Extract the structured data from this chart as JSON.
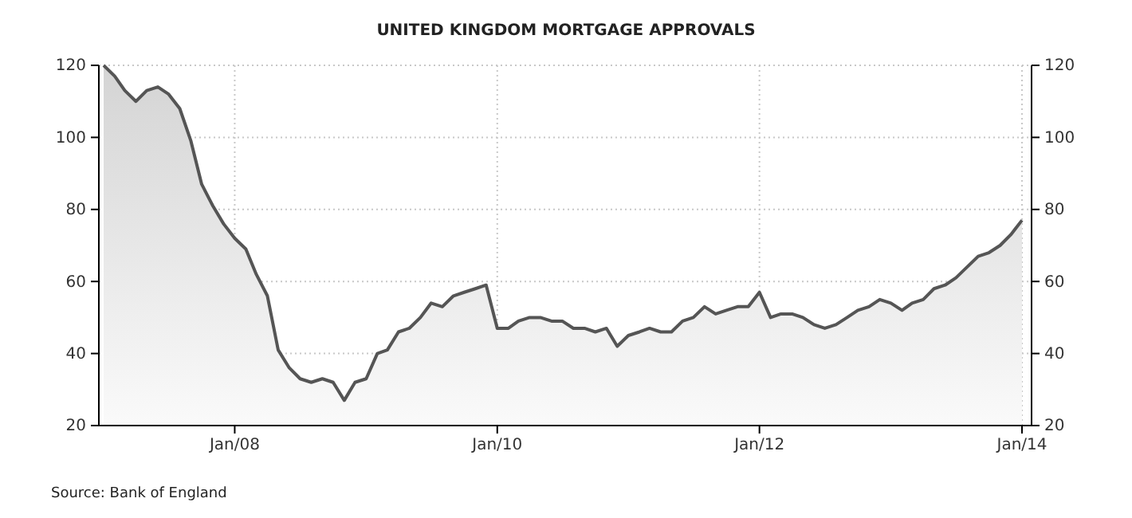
{
  "chart_data": {
    "type": "area",
    "title": "UNITED KINGDOM MORTGAGE APPROVALS",
    "x": [
      "2007-01",
      "2007-02",
      "2007-03",
      "2007-04",
      "2007-05",
      "2007-06",
      "2007-07",
      "2007-08",
      "2007-09",
      "2007-10",
      "2007-11",
      "2007-12",
      "2008-01",
      "2008-02",
      "2008-03",
      "2008-04",
      "2008-05",
      "2008-06",
      "2008-07",
      "2008-08",
      "2008-09",
      "2008-10",
      "2008-11",
      "2008-12",
      "2009-01",
      "2009-02",
      "2009-03",
      "2009-04",
      "2009-05",
      "2009-06",
      "2009-07",
      "2009-08",
      "2009-09",
      "2009-10",
      "2009-11",
      "2009-12",
      "2010-01",
      "2010-02",
      "2010-03",
      "2010-04",
      "2010-05",
      "2010-06",
      "2010-07",
      "2010-08",
      "2010-09",
      "2010-10",
      "2010-11",
      "2010-12",
      "2011-01",
      "2011-02",
      "2011-03",
      "2011-04",
      "2011-05",
      "2011-06",
      "2011-07",
      "2011-08",
      "2011-09",
      "2011-10",
      "2011-11",
      "2011-12",
      "2012-01",
      "2012-02",
      "2012-03",
      "2012-04",
      "2012-05",
      "2012-06",
      "2012-07",
      "2012-08",
      "2012-09",
      "2012-10",
      "2012-11",
      "2012-12",
      "2013-01",
      "2013-02",
      "2013-03",
      "2013-04",
      "2013-05",
      "2013-06",
      "2013-07",
      "2013-08",
      "2013-09",
      "2013-10",
      "2013-11",
      "2013-12",
      "2014-01"
    ],
    "series": [
      {
        "color": "#555555",
        "values": [
          120,
          117,
          113,
          110,
          113,
          114,
          112,
          108,
          99,
          87,
          81,
          76,
          72,
          69,
          62,
          56,
          41,
          36,
          33,
          32,
          33,
          32,
          27,
          32,
          33,
          40,
          41,
          46,
          47,
          50,
          54,
          53,
          56,
          57,
          58,
          59,
          47,
          47,
          49,
          50,
          50,
          49,
          49,
          47,
          47,
          46,
          47,
          42,
          45,
          46,
          47,
          46,
          46,
          49,
          50,
          53,
          51,
          52,
          53,
          53,
          57,
          50,
          51,
          51,
          50,
          48,
          47,
          48,
          50,
          52,
          53,
          55,
          54,
          52,
          54,
          55,
          58,
          59,
          61,
          64,
          67,
          68,
          70,
          73,
          77
        ]
      }
    ],
    "xlim": [
      "2007-01",
      "2014-01"
    ],
    "xticks": [
      {
        "value": "2008-01",
        "label": "Jan/08"
      },
      {
        "value": "2010-01",
        "label": "Jan/10"
      },
      {
        "value": "2012-01",
        "label": "Jan/12"
      },
      {
        "value": "2014-01",
        "label": "Jan/14"
      }
    ],
    "ylim": [
      20,
      120
    ],
    "yticks": [
      20,
      40,
      60,
      80,
      100,
      120
    ],
    "y2lim": [
      20,
      120
    ],
    "y2ticks": [
      20,
      40,
      60,
      80,
      100,
      120
    ],
    "grid": true,
    "annotations": [
      "Source: Bank of England"
    ]
  }
}
